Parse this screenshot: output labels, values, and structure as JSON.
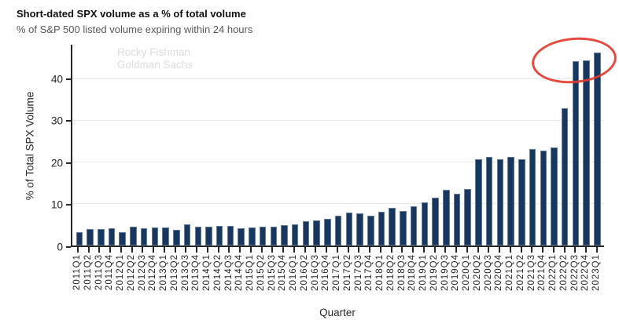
{
  "header": {
    "title": "Short-dated SPX volume as a % of total volume",
    "subtitle": "% of S&P 500 listed volume expiring within 24 hours"
  },
  "watermark": {
    "line1": "Rocky Fishman",
    "line2": "Goldman Sachs"
  },
  "annotation": {
    "type": "ellipse",
    "color": "#e43a2e",
    "circles": "tops of the final three bars (2022Q3-2023Q1)"
  },
  "colors": {
    "bar": "#17375e",
    "axis": "#262626",
    "gridline": "#e9e9e9",
    "subtitle_text": "#595959",
    "watermark_text": "#dcdcdc"
  },
  "chart_data": {
    "type": "bar",
    "title": "Short-dated SPX volume as a % of total volume",
    "subtitle": "% of S&P 500 listed volume expiring within 24 hours",
    "xlabel": "Quarter",
    "ylabel": "% of Total SPX Volume",
    "ylim": [
      0,
      48.2
    ],
    "yticks": [
      0,
      10,
      20,
      30,
      40
    ],
    "grid": "horizontal-light",
    "legend": "none",
    "categories": [
      "2011Q1",
      "2011Q2",
      "2011Q3",
      "2011Q4",
      "2012Q1",
      "2012Q2",
      "2012Q3",
      "2012Q4",
      "2013Q1",
      "2013Q2",
      "2013Q3",
      "2013Q4",
      "2014Q1",
      "2014Q2",
      "2014Q3",
      "2014Q4",
      "2015Q1",
      "2015Q2",
      "2015Q3",
      "2015Q4",
      "2016Q1",
      "2016Q2",
      "2016Q3",
      "2016Q4",
      "2017Q1",
      "2017Q2",
      "2017Q3",
      "2017Q4",
      "2018Q1",
      "2018Q2",
      "2018Q3",
      "2018Q4",
      "2019Q1",
      "2019Q2",
      "2019Q3",
      "2019Q4",
      "2020Q1",
      "2020Q2",
      "2020Q3",
      "2020Q4",
      "2021Q1",
      "2021Q2",
      "2021Q3",
      "2021Q4",
      "2022Q1",
      "2022Q2",
      "2022Q3",
      "2022Q4",
      "2023Q1"
    ],
    "values": [
      3.2,
      3.9,
      4.0,
      4.1,
      3.2,
      4.5,
      4.2,
      4.3,
      4.4,
      3.7,
      5.0,
      4.5,
      4.6,
      4.7,
      4.8,
      4.2,
      4.4,
      4.5,
      4.6,
      4.9,
      5.0,
      5.9,
      6.1,
      6.4,
      7.2,
      8.0,
      7.7,
      7.2,
      8.1,
      9.1,
      8.3,
      9.5,
      10.4,
      11.4,
      13.4,
      12.4,
      13.5,
      20.8,
      21.2,
      20.7,
      21.2,
      20.8,
      23.2,
      22.8,
      23.5,
      33.0,
      44.2,
      44.4,
      46.4
    ]
  }
}
